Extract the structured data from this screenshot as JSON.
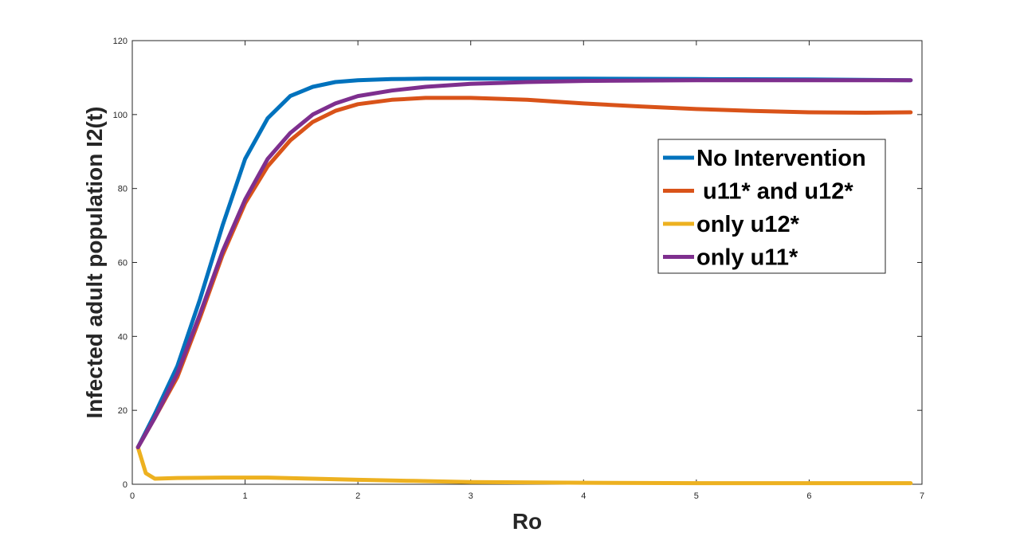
{
  "chart_data": {
    "type": "line",
    "title": "",
    "xlabel": "Ro",
    "ylabel": "Infected adult population I2(t)",
    "xlim": [
      0,
      7
    ],
    "ylim": [
      0,
      120
    ],
    "xticks": [
      "0",
      "1",
      "2",
      "3",
      "4",
      "5",
      "6",
      "7"
    ],
    "yticks": [
      "0",
      "20",
      "40",
      "60",
      "80",
      "100",
      "120"
    ],
    "grid": false,
    "legend_position": "top-right",
    "series": [
      {
        "name": "No Intervention",
        "color": "#0072BD",
        "x": [
          0.05,
          0.2,
          0.4,
          0.6,
          0.8,
          1.0,
          1.2,
          1.4,
          1.6,
          1.8,
          2.0,
          2.3,
          2.6,
          3.0,
          4.0,
          5.0,
          6.0,
          6.9
        ],
        "y": [
          10,
          19,
          32,
          50,
          70,
          88,
          99,
          105,
          107.5,
          108.8,
          109.3,
          109.6,
          109.7,
          109.7,
          109.7,
          109.6,
          109.5,
          109.3
        ]
      },
      {
        "name": " u11* and u12*",
        "color": "#D95319",
        "x": [
          0.05,
          0.2,
          0.4,
          0.6,
          0.8,
          1.0,
          1.2,
          1.4,
          1.6,
          1.8,
          2.0,
          2.3,
          2.6,
          3.0,
          3.5,
          4.0,
          4.5,
          5.0,
          5.5,
          6.0,
          6.5,
          6.9
        ],
        "y": [
          10,
          18,
          29,
          45,
          62,
          76,
          86,
          93,
          98,
          101,
          102.8,
          104,
          104.5,
          104.5,
          104,
          103,
          102.2,
          101.5,
          101,
          100.6,
          100.5,
          100.6
        ]
      },
      {
        "name": "only u12*",
        "color": "#EDB120",
        "x": [
          0.05,
          0.12,
          0.2,
          0.4,
          0.8,
          1.2,
          1.6,
          2.0,
          2.5,
          3.0,
          4.0,
          5.0,
          6.0,
          6.9
        ],
        "y": [
          10,
          3,
          1.5,
          1.7,
          1.8,
          1.8,
          1.5,
          1.2,
          0.9,
          0.6,
          0.4,
          0.3,
          0.3,
          0.3
        ]
      },
      {
        "name": "only u11*",
        "color": "#7E2F8E",
        "x": [
          0.05,
          0.2,
          0.4,
          0.6,
          0.8,
          1.0,
          1.2,
          1.4,
          1.6,
          1.8,
          2.0,
          2.3,
          2.6,
          3.0,
          3.5,
          4.0,
          5.0,
          6.0,
          6.9
        ],
        "y": [
          10,
          18,
          30,
          46,
          63,
          77,
          88,
          95,
          100,
          103,
          105,
          106.5,
          107.5,
          108.3,
          108.8,
          109.1,
          109.3,
          109.3,
          109.3
        ]
      }
    ]
  }
}
